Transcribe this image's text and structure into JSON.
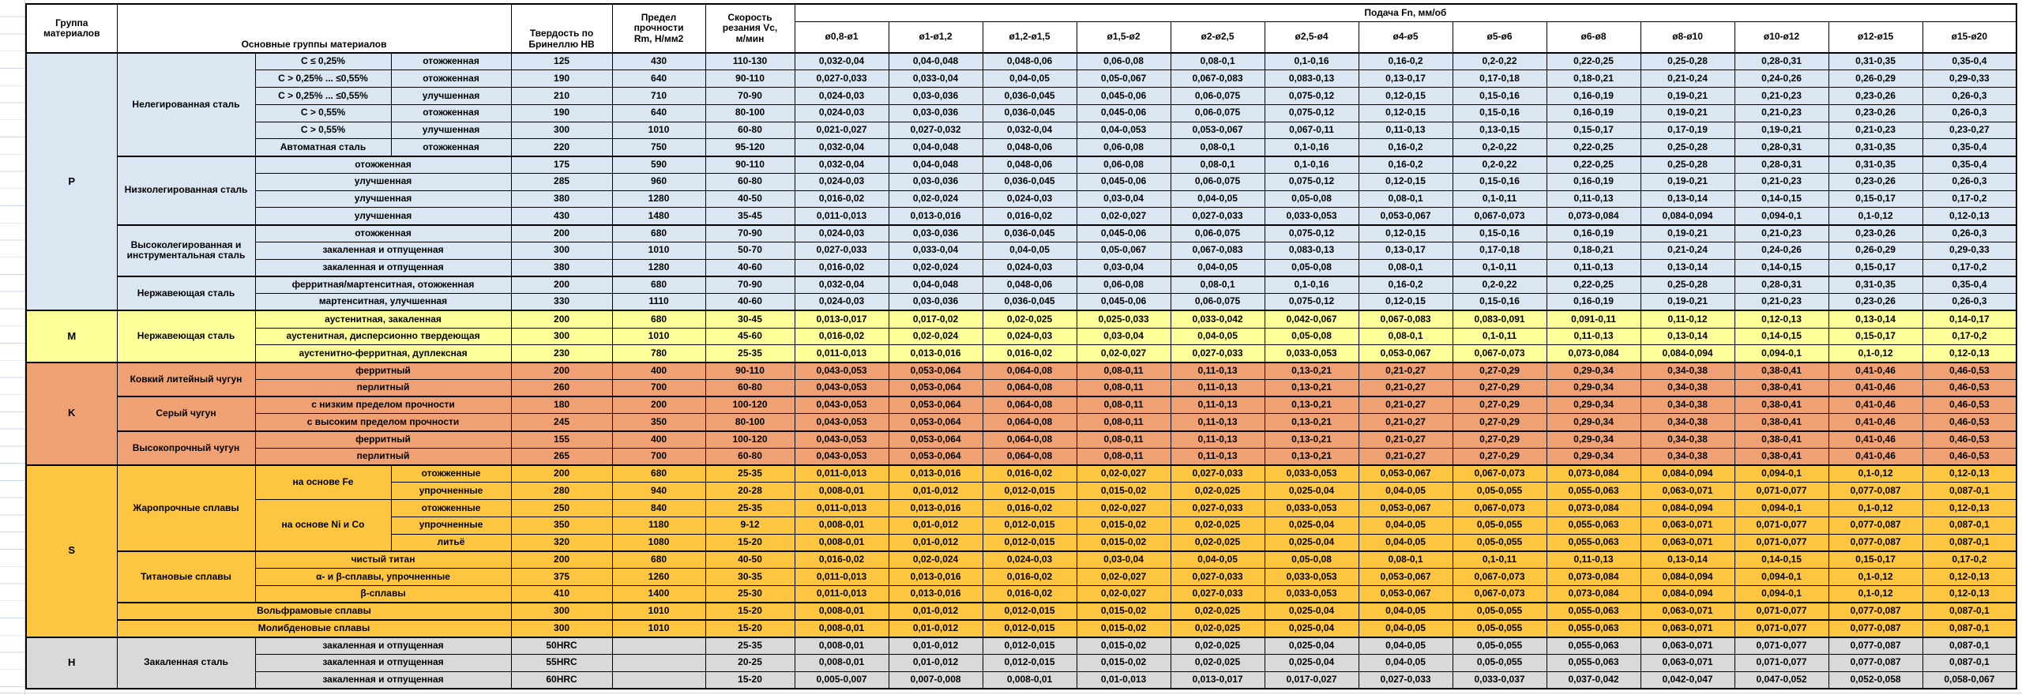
{
  "header": {
    "group": "Группа\nматериалов",
    "materials": "Основные группы материалов",
    "hardness": "Твердость по\nБринеллю HB",
    "strength": "Предел\nпрочности\nRm, Н/мм2",
    "speed": "Скорость\nрезания Vc,\nм/мин",
    "feed": "Подача Fn, мм/об"
  },
  "feed": {
    "diameters": [
      "ø0,8-ø1",
      "ø1-ø1,2",
      "ø1,2-ø1,5",
      "ø1,5-ø2",
      "ø2-ø2,5",
      "ø2,5-ø4",
      "ø4-ø5",
      "ø5-ø6",
      "ø6-ø8",
      "ø8-ø10",
      "ø10-ø12",
      "ø12-ø15",
      "ø15-ø20"
    ],
    "patterns": {
      "A": [
        "0,032-0,04",
        "0,04-0,048",
        "0,048-0,06",
        "0,06-0,08",
        "0,08-0,1",
        "0,1-0,16",
        "0,16-0,2",
        "0,2-0,22",
        "0,22-0,25",
        "0,25-0,28",
        "0,28-0,31",
        "0,31-0,35",
        "0,35-0,4"
      ],
      "B": [
        "0,027-0,033",
        "0,033-0,04",
        "0,04-0,05",
        "0,05-0,067",
        "0,067-0,083",
        "0,083-0,13",
        "0,13-0,17",
        "0,17-0,18",
        "0,18-0,21",
        "0,21-0,24",
        "0,24-0,26",
        "0,26-0,29",
        "0,29-0,33"
      ],
      "C": [
        "0,024-0,03",
        "0,03-0,036",
        "0,036-0,045",
        "0,045-0,06",
        "0,06-0,075",
        "0,075-0,12",
        "0,12-0,15",
        "0,15-0,16",
        "0,16-0,19",
        "0,19-0,21",
        "0,21-0,23",
        "0,23-0,26",
        "0,26-0,3"
      ],
      "D": [
        "0,021-0,027",
        "0,027-0,032",
        "0,032-0,04",
        "0,04-0,053",
        "0,053-0,067",
        "0,067-0,11",
        "0,11-0,13",
        "0,13-0,15",
        "0,15-0,17",
        "0,17-0,19",
        "0,19-0,21",
        "0,21-0,23",
        "0,23-0,27"
      ],
      "E": [
        "0,016-0,02",
        "0,02-0,024",
        "0,024-0,03",
        "0,03-0,04",
        "0,04-0,05",
        "0,05-0,08",
        "0,08-0,1",
        "0,1-0,11",
        "0,11-0,13",
        "0,13-0,14",
        "0,14-0,15",
        "0,15-0,17",
        "0,17-0,2"
      ],
      "F": [
        "0,011-0,013",
        "0,013-0,016",
        "0,016-0,02",
        "0,02-0,027",
        "0,027-0,033",
        "0,033-0,053",
        "0,053-0,067",
        "0,067-0,073",
        "0,073-0,084",
        "0,084-0,094",
        "0,094-0,1",
        "0,1-0,12",
        "0,12-0,13"
      ],
      "G": [
        "0,013-0,017",
        "0,017-0,02",
        "0,02-0,025",
        "0,025-0,033",
        "0,033-0,042",
        "0,042-0,067",
        "0,067-0,083",
        "0,083-0,091",
        "0,091-0,11",
        "0,11-0,12",
        "0,12-0,13",
        "0,13-0,14",
        "0,14-0,17"
      ],
      "K": [
        "0,043-0,053",
        "0,053-0,064",
        "0,064-0,08",
        "0,08-0,11",
        "0,11-0,13",
        "0,13-0,21",
        "0,21-0,27",
        "0,27-0,29",
        "0,29-0,34",
        "0,34-0,38",
        "0,38-0,41",
        "0,41-0,46",
        "0,46-0,53"
      ],
      "H8": [
        "0,008-0,01",
        "0,01-0,012",
        "0,012-0,015",
        "0,015-0,02",
        "0,02-0,025",
        "0,025-0,04",
        "0,04-0,05",
        "0,05-0,055",
        "0,055-0,063",
        "0,063-0,071",
        "0,071-0,077",
        "0,077-0,087",
        "0,087-0,1"
      ],
      "Z": [
        "0,005-0,007",
        "0,007-0,008",
        "0,008-0,01",
        "0,01-0,013",
        "0,013-0,017",
        "0,017-0,027",
        "0,027-0,033",
        "0,033-0,037",
        "0,037-0,042",
        "0,042-0,047",
        "0,047-0,052",
        "0,052-0,058",
        "0,058-0,067"
      ]
    }
  },
  "colors": {
    "P": "#DAE7F2",
    "M": "#FFFF99",
    "K": "#F0A173",
    "S": "#FDC540",
    "H": "#D9D9D9",
    "gridline": "#CCD6E4",
    "border": "#000000"
  },
  "groups": [
    {
      "code": "P",
      "color": "#DAE7F2",
      "families": [
        {
          "name": "Нелегированная сталь",
          "rows": [
            {
              "cells": [
                [
                  "C ≤ 0,25%"
                ],
                [
                  "отожженная"
                ]
              ],
              "hb": "125",
              "rm": "430",
              "vc": "110-130",
              "feed": "A"
            },
            {
              "cells": [
                [
                  "C > 0,25% ... ≤0,55%"
                ],
                [
                  "отожженная"
                ]
              ],
              "hb": "190",
              "rm": "640",
              "vc": "90-110",
              "feed": "B"
            },
            {
              "cells": [
                [
                  "C > 0,25% ... ≤0,55%"
                ],
                [
                  "улучшенная"
                ]
              ],
              "hb": "210",
              "rm": "710",
              "vc": "70-90",
              "feed": "C"
            },
            {
              "cells": [
                [
                  "C > 0,55%"
                ],
                [
                  "отожженная"
                ]
              ],
              "hb": "190",
              "rm": "640",
              "vc": "80-100",
              "feed": "C"
            },
            {
              "cells": [
                [
                  "C > 0,55%"
                ],
                [
                  "улучшенная"
                ]
              ],
              "hb": "300",
              "rm": "1010",
              "vc": "60-80",
              "feed": "D"
            },
            {
              "cells": [
                [
                  "Автоматная сталь"
                ],
                [
                  "отожженная"
                ]
              ],
              "hb": "220",
              "rm": "750",
              "vc": "95-120",
              "feed": "A"
            }
          ]
        },
        {
          "name": "Низколегированная сталь",
          "rows": [
            {
              "cells": [
                [
                  "отожженная",
                  2
                ]
              ],
              "hb": "175",
              "rm": "590",
              "vc": "90-110",
              "feed": "A"
            },
            {
              "cells": [
                [
                  "улучшенная",
                  2
                ]
              ],
              "hb": "285",
              "rm": "960",
              "vc": "60-80",
              "feed": "C"
            },
            {
              "cells": [
                [
                  "улучшенная",
                  2
                ]
              ],
              "hb": "380",
              "rm": "1280",
              "vc": "40-50",
              "feed": "E"
            },
            {
              "cells": [
                [
                  "улучшенная",
                  2
                ]
              ],
              "hb": "430",
              "rm": "1480",
              "vc": "35-45",
              "feed": "F"
            }
          ]
        },
        {
          "name": "Высоколегированная и инструментальная сталь",
          "rows": [
            {
              "cells": [
                [
                  "отожженная",
                  2
                ]
              ],
              "hb": "200",
              "rm": "680",
              "vc": "70-90",
              "feed": "C"
            },
            {
              "cells": [
                [
                  "закаленная и отпущенная",
                  2
                ]
              ],
              "hb": "300",
              "rm": "1010",
              "vc": "50-70",
              "feed": "B"
            },
            {
              "cells": [
                [
                  "закаленная и отпущенная",
                  2
                ]
              ],
              "hb": "380",
              "rm": "1280",
              "vc": "40-60",
              "feed": "E"
            }
          ]
        },
        {
          "name": "Нержавеющая сталь",
          "rows": [
            {
              "cells": [
                [
                  "ферритная/мартенситная, отожженная",
                  2
                ]
              ],
              "hb": "200",
              "rm": "680",
              "vc": "70-90",
              "feed": "A"
            },
            {
              "cells": [
                [
                  "мартенситная, улучшенная",
                  2
                ]
              ],
              "hb": "330",
              "rm": "1110",
              "vc": "40-60",
              "feed": "C"
            }
          ]
        }
      ]
    },
    {
      "code": "M",
      "color": "#FFFF99",
      "families": [
        {
          "name": "Нержавеющая сталь",
          "rows": [
            {
              "cells": [
                [
                  "аустенитная, закаленная",
                  2
                ]
              ],
              "hb": "200",
              "rm": "680",
              "vc": "30-45",
              "feed": "G"
            },
            {
              "cells": [
                [
                  "аустенитная, дисперсионно твердеющая",
                  2
                ]
              ],
              "hb": "300",
              "rm": "1010",
              "vc": "45-60",
              "feed": "E"
            },
            {
              "cells": [
                [
                  "аустенитно-ферритная, дуплексная",
                  2
                ]
              ],
              "hb": "230",
              "rm": "780",
              "vc": "25-35",
              "feed": "F"
            }
          ]
        }
      ]
    },
    {
      "code": "K",
      "color": "#F0A173",
      "families": [
        {
          "name": "Ковкий литейный чугун",
          "rows": [
            {
              "cells": [
                [
                  "ферритный",
                  2
                ]
              ],
              "hb": "200",
              "rm": "400",
              "vc": "90-110",
              "feed": "K"
            },
            {
              "cells": [
                [
                  "перлитный",
                  2
                ]
              ],
              "hb": "260",
              "rm": "700",
              "vc": "60-80",
              "feed": "K"
            }
          ]
        },
        {
          "name": "Серый чугун",
          "rows": [
            {
              "cells": [
                [
                  "с низким пределом прочности",
                  2
                ]
              ],
              "hb": "180",
              "rm": "200",
              "vc": "100-120",
              "feed": "K"
            },
            {
              "cells": [
                [
                  "с высоким пределом прочности",
                  2
                ]
              ],
              "hb": "245",
              "rm": "350",
              "vc": "80-100",
              "feed": "K"
            }
          ]
        },
        {
          "name": "Высокопрочный чугун",
          "rows": [
            {
              "cells": [
                [
                  "ферритный",
                  2
                ]
              ],
              "hb": "155",
              "rm": "400",
              "vc": "100-120",
              "feed": "K"
            },
            {
              "cells": [
                [
                  "перлитный",
                  2
                ]
              ],
              "hb": "265",
              "rm": "700",
              "vc": "60-80",
              "feed": "K"
            }
          ]
        }
      ]
    },
    {
      "code": "S",
      "color": "#FDC540",
      "families": [
        {
          "name": "Жаропрочные сплавы",
          "rows": [
            {
              "cells": [
                [
                  "на основе Fe",
                  1,
                  2
                ],
                [
                  "отожженные"
                ]
              ],
              "hb": "200",
              "rm": "680",
              "vc": "25-35",
              "feed": "F"
            },
            {
              "cells": [
                [
                  "упрочненные"
                ]
              ],
              "hb": "280",
              "rm": "940",
              "vc": "20-28",
              "feed": "H8"
            },
            {
              "cells": [
                [
                  "на основе Ni и Co",
                  1,
                  3
                ],
                [
                  "отожженные"
                ]
              ],
              "hb": "250",
              "rm": "840",
              "vc": "25-35",
              "feed": "F"
            },
            {
              "cells": [
                [
                  "упрочненные"
                ]
              ],
              "hb": "350",
              "rm": "1180",
              "vc": "9-12",
              "feed": "H8"
            },
            {
              "cells": [
                [
                  "литьё"
                ]
              ],
              "hb": "320",
              "rm": "1080",
              "vc": "15-20",
              "feed": "H8"
            }
          ]
        },
        {
          "name": "Титановые сплавы",
          "rows": [
            {
              "cells": [
                [
                  "чистый титан",
                  2
                ]
              ],
              "hb": "200",
              "rm": "680",
              "vc": "40-50",
              "feed": "E"
            },
            {
              "cells": [
                [
                  "α- и β-сплавы, упрочненные",
                  2
                ]
              ],
              "hb": "375",
              "rm": "1260",
              "vc": "30-35",
              "feed": "F"
            },
            {
              "cells": [
                [
                  "β-сплавы",
                  2
                ]
              ],
              "hb": "410",
              "rm": "1400",
              "vc": "25-30",
              "feed": "F"
            }
          ]
        },
        {
          "name": "Вольфрамовые сплавы",
          "span_all": true,
          "rows": [
            {
              "cells": [],
              "hb": "300",
              "rm": "1010",
              "vc": "15-20",
              "feed": "H8"
            }
          ]
        },
        {
          "name": "Молибденовые сплавы",
          "span_all": true,
          "rows": [
            {
              "cells": [],
              "hb": "300",
              "rm": "1010",
              "vc": "15-20",
              "feed": "H8"
            }
          ]
        }
      ]
    },
    {
      "code": "H",
      "color": "#D9D9D9",
      "families": [
        {
          "name": "Закаленная сталь",
          "rows": [
            {
              "cells": [
                [
                  "закаленная и отпущенная",
                  2
                ]
              ],
              "hb": "50HRC",
              "rm": "",
              "vc": "25-35",
              "feed": "H8"
            },
            {
              "cells": [
                [
                  "закаленная и отпущенная",
                  2
                ]
              ],
              "hb": "55HRC",
              "rm": "",
              "vc": "20-25",
              "feed": "H8"
            },
            {
              "cells": [
                [
                  "закаленная и отпущенная",
                  2
                ]
              ],
              "hb": "60HRC",
              "rm": "",
              "vc": "15-20",
              "feed": "Z"
            }
          ]
        }
      ]
    }
  ]
}
